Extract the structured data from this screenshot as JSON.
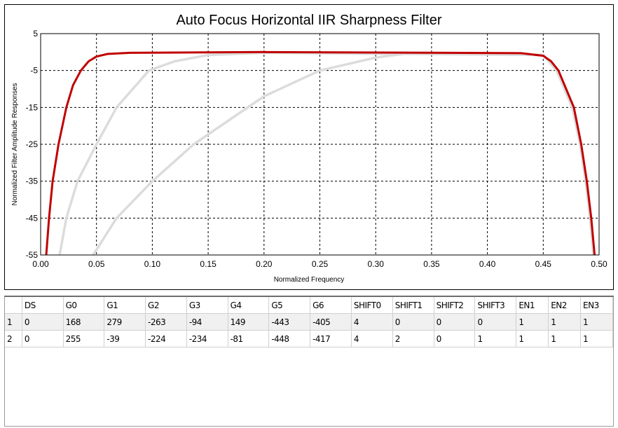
{
  "chart_data": {
    "type": "line",
    "title": "Auto Focus Horizontal IIR Sharpness Filter",
    "xlabel": "Normalized Frequency",
    "ylabel": "Normalized Filter Amplitude Responses",
    "xlim": [
      0,
      0.5
    ],
    "ylim": [
      -55,
      5
    ],
    "xticks": [
      "0.00",
      "0.05",
      "0.10",
      "0.15",
      "0.20",
      "0.25",
      "0.30",
      "0.35",
      "0.40",
      "0.45",
      "0.50"
    ],
    "yticks": [
      "5",
      "-5",
      "-15",
      "-25",
      "-35",
      "-45",
      "-55"
    ],
    "grid": true,
    "series": [
      {
        "name": "response-2-gray",
        "color": "#dcdcdc",
        "x": [
          0.047,
          0.068,
          0.1,
          0.137,
          0.2,
          0.25,
          0.3,
          0.33,
          0.45,
          0.462,
          0.476,
          0.483,
          0.488,
          0.492,
          0.495
        ],
        "y": [
          -55,
          -45,
          -35,
          -25,
          -12,
          -5,
          -1.5,
          -0.3,
          -0.8,
          -5,
          -15,
          -25,
          -35,
          -45,
          -55
        ]
      },
      {
        "name": "response-1-gray",
        "color": "#dcdcdc",
        "x": [
          0.017,
          0.023,
          0.033,
          0.05,
          0.068,
          0.097,
          0.12,
          0.15,
          0.2,
          0.45,
          0.462,
          0.476,
          0.483,
          0.488,
          0.492,
          0.495
        ],
        "y": [
          -55,
          -45,
          -35,
          -25,
          -15,
          -5,
          -2.5,
          -0.8,
          -0.2,
          -0.8,
          -5,
          -15,
          -25,
          -35,
          -45,
          -55
        ]
      },
      {
        "name": "response-selected-red",
        "color": "#c00000",
        "x": [
          0.005,
          0.0075,
          0.0107,
          0.016,
          0.023,
          0.029,
          0.036,
          0.043,
          0.05,
          0.06,
          0.08,
          0.2,
          0.43,
          0.45,
          0.457,
          0.4636,
          0.4774,
          0.484,
          0.489,
          0.493,
          0.496
        ],
        "y": [
          -55,
          -45,
          -35,
          -25,
          -15,
          -9,
          -5,
          -2.5,
          -1.2,
          -0.5,
          -0.2,
          0,
          -0.3,
          -1,
          -2.5,
          -5,
          -15,
          -25,
          -35,
          -45,
          -55
        ]
      }
    ]
  },
  "table": {
    "columns": [
      "",
      "DS",
      "G0",
      "G1",
      "G2",
      "G3",
      "G4",
      "G5",
      "G6",
      "SHIFT0",
      "SHIFT1",
      "SHIFT2",
      "SHIFT3",
      "EN1",
      "EN2",
      "EN3"
    ],
    "rows": [
      [
        "1",
        "0",
        "168",
        "279",
        "-263",
        "-94",
        "149",
        "-443",
        "-405",
        "4",
        "0",
        "0",
        "0",
        "1",
        "1",
        "1"
      ],
      [
        "2",
        "0",
        "255",
        "-39",
        "-224",
        "-234",
        "-81",
        "-448",
        "-417",
        "4",
        "2",
        "0",
        "1",
        "1",
        "1",
        "1"
      ]
    ]
  }
}
